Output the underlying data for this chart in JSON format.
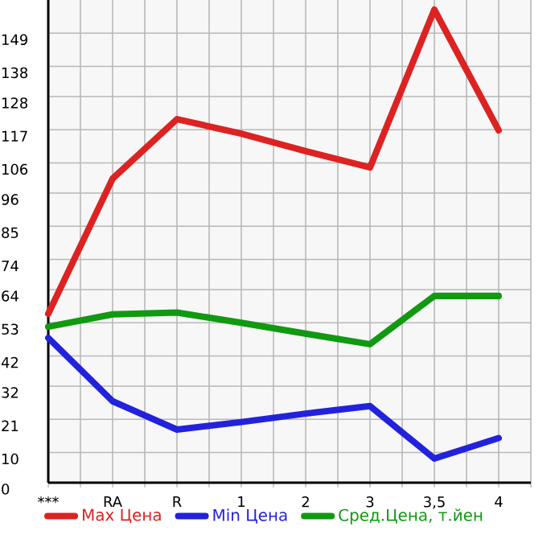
{
  "chart_data": {
    "type": "line",
    "categories": [
      "***",
      "RA",
      "R",
      "1",
      "2",
      "3",
      "3,5",
      "4"
    ],
    "series": [
      {
        "name": "Max Цена",
        "color": "#dd2222",
        "values": [
          56,
          100.8,
          120.5,
          115.7,
          109.9,
          104.5,
          156.8,
          116.8
        ]
      },
      {
        "name": "Min Цена",
        "color": "#2222dd",
        "values": [
          48,
          27,
          17.6,
          20.1,
          22.9,
          25.4,
          8,
          14.8
        ]
      },
      {
        "name": "Сред.Цена, т.йен",
        "color": "#119911",
        "values": [
          51.7,
          55.8,
          56.4,
          53,
          49.4,
          45.9,
          61.9,
          61.9
        ]
      }
    ],
    "ylim": [
      0,
      160
    ],
    "yticks": [
      0,
      10,
      21,
      32,
      42,
      53,
      64,
      74,
      85,
      96,
      106,
      117,
      128,
      138,
      149
    ],
    "grid": true,
    "legend": "bottom",
    "line_style": "solid"
  }
}
